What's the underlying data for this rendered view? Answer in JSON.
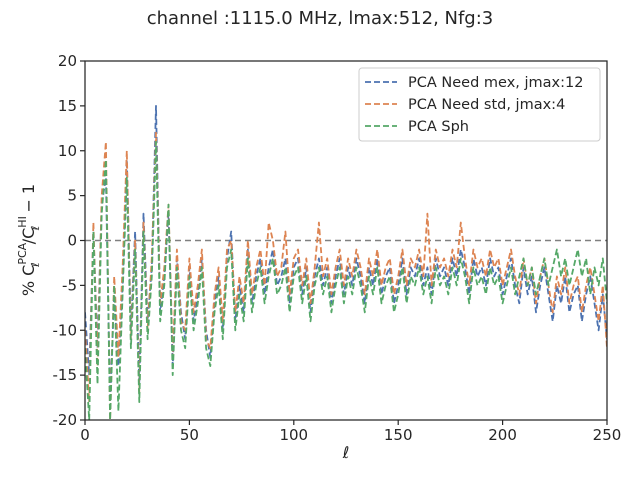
{
  "chart_data": {
    "type": "line",
    "title": "channel :1115.0 MHz, lmax:512, Nfg:3",
    "xlabel": "ℓ",
    "ylabel_prefix": "% C",
    "ylabel_sub": "ℓ",
    "ylabel_sup_num": "PCA",
    "ylabel_sup_den": "HI",
    "ylabel_suffix": " − 1",
    "xlim": [
      0,
      250
    ],
    "ylim": [
      -20,
      20
    ],
    "xticks": [
      0,
      50,
      100,
      150,
      200,
      250
    ],
    "yticks": [
      -20,
      -15,
      -10,
      -5,
      0,
      5,
      10,
      15,
      20
    ],
    "grid": false,
    "legend_position": "top-right",
    "reference_line": {
      "y": 0,
      "color": "#808080",
      "style": "dashed"
    },
    "x": [
      0,
      2,
      4,
      6,
      8,
      10,
      12,
      14,
      16,
      18,
      20,
      22,
      24,
      26,
      28,
      30,
      32,
      34,
      36,
      38,
      40,
      42,
      44,
      46,
      48,
      50,
      52,
      54,
      56,
      58,
      60,
      62,
      64,
      66,
      68,
      70,
      72,
      74,
      76,
      78,
      80,
      82,
      84,
      86,
      88,
      90,
      92,
      94,
      96,
      98,
      100,
      102,
      104,
      106,
      108,
      110,
      112,
      114,
      116,
      118,
      120,
      122,
      124,
      126,
      128,
      130,
      132,
      134,
      136,
      138,
      140,
      142,
      144,
      146,
      148,
      150,
      152,
      154,
      156,
      158,
      160,
      162,
      164,
      166,
      168,
      170,
      172,
      174,
      176,
      178,
      180,
      182,
      184,
      186,
      188,
      190,
      192,
      194,
      196,
      198,
      200,
      202,
      204,
      206,
      208,
      210,
      212,
      214,
      216,
      218,
      220,
      222,
      224,
      226,
      228,
      230,
      232,
      234,
      236,
      238,
      240,
      242,
      244,
      246,
      248,
      250
    ],
    "series": [
      {
        "name": "PCA Need mex, jmax:12",
        "color": "#4c72b0",
        "values": [
          -8,
          -15,
          1,
          -12,
          4,
          7,
          -18,
          -6,
          -14,
          -5,
          9,
          -10,
          1,
          -16,
          3,
          -9,
          -3,
          15,
          -8,
          -4,
          3,
          -14,
          -2,
          -8,
          -11,
          -3,
          -9,
          -6,
          -2,
          -10,
          -13,
          -7,
          -4,
          -10,
          -2,
          1,
          -9,
          -5,
          -8,
          -1,
          -7,
          -4,
          -2,
          -6,
          -3,
          -1,
          -5,
          -4,
          -2,
          -7,
          -3,
          -2,
          -6,
          -3,
          -8,
          -4,
          -2,
          -5,
          -3,
          -7,
          -4,
          -2,
          -6,
          -3,
          -5,
          -2,
          -4,
          -7,
          -3,
          -5,
          -2,
          -6,
          -4,
          -3,
          -7,
          -5,
          -2,
          -6,
          -3,
          -4,
          -2,
          -5,
          -3,
          -6,
          -2,
          -4,
          -3,
          -5,
          -2,
          -4,
          -1,
          -3,
          -6,
          -2,
          -4,
          -3,
          -5,
          -2,
          -4,
          -3,
          -6,
          -4,
          -2,
          -5,
          -7,
          -3,
          -6,
          -4,
          -8,
          -5,
          -3,
          -6,
          -9,
          -5,
          -7,
          -4,
          -8,
          -6,
          -5,
          -9,
          -6,
          -4,
          -7,
          -10,
          -6,
          -11
        ]
      },
      {
        "name": "PCA Need std, jmax:4",
        "color": "#dd8452",
        "values": [
          -10,
          -18,
          2,
          -14,
          5,
          11,
          -20,
          -4,
          -13,
          -3,
          10,
          -11,
          0,
          -17,
          2,
          -10,
          -2,
          12,
          -7,
          -3,
          4,
          -13,
          -1,
          -9,
          -10,
          -2,
          -8,
          -5,
          -1,
          -11,
          -12,
          -6,
          -3,
          -9,
          -1,
          0,
          -8,
          -4,
          -7,
          0,
          -6,
          -3,
          -1,
          -5,
          2,
          0,
          -4,
          -3,
          1,
          -6,
          -2,
          -1,
          -5,
          -2,
          -7,
          -3,
          2,
          -4,
          -2,
          -6,
          -3,
          -1,
          -5,
          -2,
          -4,
          -1,
          -3,
          -6,
          -2,
          -4,
          -1,
          -5,
          -3,
          -2,
          -6,
          -4,
          -1,
          -5,
          -2,
          -3,
          -1,
          -4,
          3,
          -5,
          -1,
          -3,
          -2,
          -4,
          -1,
          -3,
          2,
          -2,
          -5,
          -1,
          -3,
          -2,
          -4,
          -1,
          -3,
          -2,
          -5,
          -3,
          -1,
          -4,
          -6,
          -2,
          -5,
          -3,
          -7,
          -4,
          -2,
          -5,
          -8,
          -4,
          -6,
          -3,
          -7,
          -5,
          -4,
          -8,
          -5,
          -3,
          -6,
          -9,
          -5,
          -12
        ]
      },
      {
        "name": "PCA Sph",
        "color": "#55a868",
        "values": [
          -12,
          -20,
          1,
          -16,
          3,
          9,
          -20,
          -5,
          -19,
          -6,
          7,
          -12,
          -1,
          -18,
          1,
          -11,
          -4,
          11,
          -9,
          -5,
          4,
          -15,
          -3,
          -10,
          -12,
          -4,
          -10,
          -7,
          -3,
          -12,
          -14,
          -8,
          -5,
          -11,
          -3,
          -1,
          -10,
          -6,
          -9,
          -2,
          -8,
          -5,
          -3,
          -7,
          -4,
          -2,
          -6,
          -5,
          -3,
          -8,
          -4,
          -3,
          -7,
          -4,
          -9,
          -5,
          -3,
          -6,
          -4,
          -8,
          -5,
          -3,
          -7,
          -4,
          -6,
          -3,
          -5,
          -8,
          -4,
          -6,
          -3,
          -7,
          -5,
          -4,
          -8,
          -6,
          -3,
          -7,
          -4,
          -5,
          -3,
          -6,
          -4,
          -7,
          -3,
          -5,
          -4,
          -6,
          -3,
          -5,
          -2,
          -4,
          -7,
          -3,
          -5,
          -4,
          -6,
          -3,
          -5,
          -4,
          -7,
          -5,
          -3,
          -6,
          -4,
          -2,
          -5,
          -3,
          -6,
          -4,
          -2,
          -5,
          -3,
          -1,
          -4,
          -2,
          -5,
          -3,
          -1,
          -4,
          -2,
          -6,
          -3,
          -5,
          -2,
          -7
        ]
      }
    ]
  }
}
